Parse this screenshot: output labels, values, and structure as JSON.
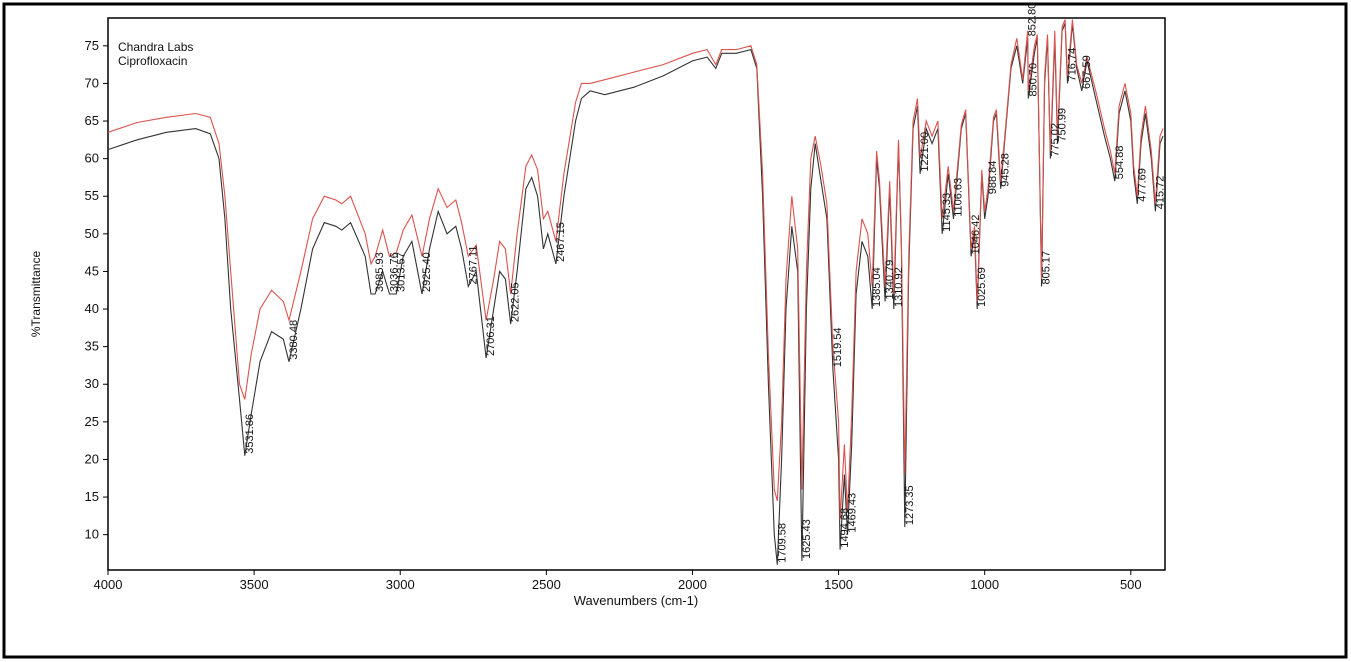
{
  "chart_data": {
    "type": "line",
    "title": "Chandra Labs",
    "subtitle": "Ciprofloxacin",
    "xlabel": "Wavenumbers (cm-1)",
    "ylabel": "%Transmittance",
    "xlim": [
      4000,
      383
    ],
    "ylim": [
      5.3,
      78.7
    ],
    "xticks": [
      4000,
      3500,
      3000,
      2500,
      2000,
      1500,
      1000,
      500
    ],
    "yticks": [
      10,
      15,
      20,
      25,
      30,
      35,
      40,
      45,
      50,
      55,
      60,
      65,
      70,
      75
    ],
    "x": [
      4000,
      3900,
      3800,
      3700,
      3650,
      3620,
      3600,
      3580,
      3550,
      3531.86,
      3510,
      3480,
      3440,
      3400,
      3380.48,
      3340,
      3300,
      3260,
      3220,
      3200,
      3170,
      3120,
      3100,
      3085.93,
      3060,
      3036.76,
      3013.57,
      2990,
      2960,
      2925.4,
      2900,
      2870,
      2840,
      2810,
      2790,
      2767.11,
      2740,
      2706.31,
      2680,
      2660,
      2640,
      2622.05,
      2600,
      2570,
      2550,
      2530,
      2510,
      2495,
      2467.15,
      2440,
      2400,
      2380,
      2350,
      2300,
      2200,
      2100,
      2000,
      1950,
      1920,
      1900,
      1850,
      1800,
      1780,
      1760,
      1740,
      1720,
      1709.58,
      1695,
      1680,
      1660,
      1640,
      1625.43,
      1610,
      1595,
      1580,
      1560,
      1540,
      1519.54,
      1500,
      1494.68,
      1480,
      1469.43,
      1455,
      1440,
      1420,
      1400,
      1385.04,
      1370,
      1360,
      1340.79,
      1325,
      1310.92,
      1295,
      1285,
      1273.35,
      1260,
      1245,
      1230,
      1221,
      1200,
      1180,
      1160,
      1145.33,
      1125,
      1106.63,
      1080,
      1065,
      1046.42,
      1035,
      1025.69,
      1010,
      1000,
      988.84,
      970,
      960,
      945.28,
      930,
      910,
      890,
      870,
      852.8,
      850.7,
      830,
      820,
      805.17,
      795,
      785,
      775.02,
      760,
      750.99,
      735,
      725,
      716.74,
      700,
      685,
      667.59,
      650,
      620,
      590,
      570,
      554.88,
      540,
      520,
      500,
      490,
      477.69,
      465,
      450,
      430,
      415.72,
      400,
      390
    ],
    "series": [
      {
        "color": "#333333",
        "values": [
          61.2,
          62.5,
          63.5,
          64,
          63.3,
          60,
          52,
          40,
          28,
          20.5,
          26,
          33,
          37,
          36,
          33,
          40,
          48,
          51.5,
          51,
          50.5,
          51.5,
          47,
          42,
          42,
          45,
          42,
          42,
          47,
          49,
          42,
          48,
          53,
          50,
          51,
          48,
          43,
          45,
          33.5,
          40,
          45,
          44,
          38,
          45,
          56,
          57.5,
          55,
          48,
          50,
          46,
          55,
          65,
          68,
          69,
          68.5,
          69.5,
          71,
          73,
          73.5,
          72,
          74,
          74,
          74.5,
          72,
          55,
          30,
          10,
          6,
          20,
          40,
          51,
          45,
          6.5,
          40,
          56,
          62,
          57,
          52,
          32,
          20,
          8,
          18,
          10,
          22,
          42,
          49,
          47,
          40,
          60,
          56,
          41,
          56,
          40,
          62,
          48,
          11,
          45,
          64,
          67,
          58,
          64,
          62,
          64,
          50,
          58,
          52,
          64,
          66,
          47,
          50,
          40,
          58,
          52,
          55,
          65,
          66,
          56,
          63,
          72,
          75,
          70,
          76,
          68,
          74,
          76,
          43,
          70,
          76,
          60,
          76,
          62,
          77,
          78,
          70,
          78,
          72,
          69,
          73,
          68,
          63,
          60,
          57,
          66,
          69,
          65,
          58,
          54,
          62,
          66,
          60,
          53,
          62,
          63
        ]
      },
      {
        "color": "#d9534f",
        "values": [
          63.5,
          64.8,
          65.5,
          66,
          65.5,
          62,
          55,
          45,
          30,
          28,
          34,
          40,
          42.5,
          41,
          38.5,
          45,
          52,
          55,
          54.5,
          54,
          55,
          50,
          46,
          47,
          50.5,
          47,
          47.5,
          50.5,
          52.5,
          47,
          52,
          56,
          53.5,
          54.5,
          51.5,
          47,
          48.5,
          38.5,
          44,
          49,
          48,
          42,
          50,
          59,
          60.5,
          58.5,
          52,
          53,
          49,
          58,
          67.5,
          70,
          70,
          70.5,
          71.5,
          72.5,
          74,
          74.5,
          72.5,
          74.5,
          74.5,
          75,
          72.5,
          58,
          34,
          16,
          14.5,
          25,
          44,
          55,
          48,
          16,
          45,
          60,
          63,
          59,
          54,
          35,
          25,
          12,
          22,
          13,
          26,
          45,
          52,
          50,
          43,
          61,
          57,
          43,
          57,
          42,
          62.5,
          49,
          18,
          47,
          65,
          68,
          60,
          65,
          63,
          65,
          52,
          59,
          53,
          64.5,
          66.5,
          48,
          51,
          41,
          58.5,
          53,
          56,
          65.5,
          66.5,
          57,
          63.5,
          72.5,
          76,
          70.5,
          77,
          69,
          75,
          76.5,
          44,
          71,
          76.5,
          61,
          77,
          63,
          77.5,
          78.5,
          71,
          78.5,
          72.5,
          70,
          73.5,
          69,
          64,
          61,
          58,
          67,
          70,
          66,
          59,
          55,
          63,
          67,
          61,
          54,
          63,
          64
        ]
      }
    ],
    "peak_labels": [
      3531.86,
      3380.48,
      3085.93,
      3036.76,
      3013.57,
      {
        "value": 2925.4,
        "label": "2925.40"
      },
      2767.11,
      2706.31,
      2622.05,
      2467.15,
      1709.58,
      1625.43,
      1519.54,
      1494.68,
      1469.43,
      1385.04,
      1340.79,
      1310.92,
      1273.35,
      {
        "value": 1221,
        "label": "1221.00"
      },
      1145.33,
      1106.63,
      1046.42,
      1025.69,
      988.84,
      945.28,
      {
        "value": 852.8,
        "label": "852.80"
      },
      {
        "value": 850.7,
        "label": "850.70"
      },
      805.17,
      775.02,
      750.99,
      716.74,
      667.59,
      554.88,
      477.69,
      415.72
    ]
  }
}
